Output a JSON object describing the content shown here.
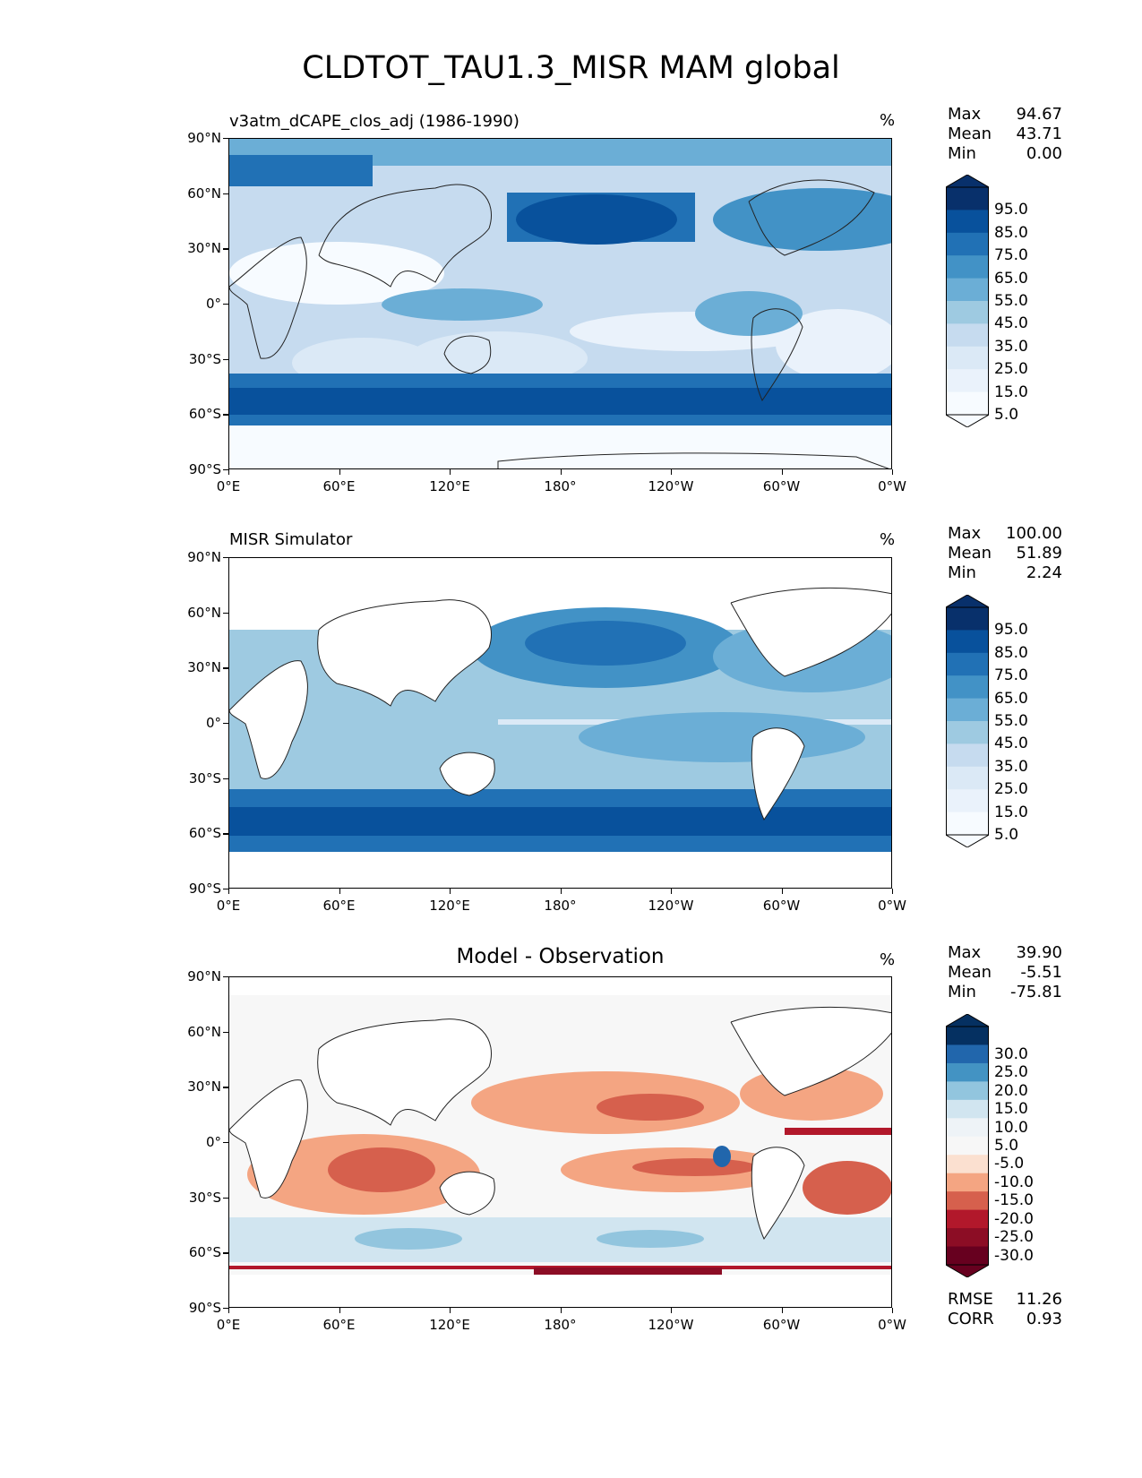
{
  "figure": {
    "title": "CLDTOT_TAU1.3_MISR MAM global"
  },
  "axes": {
    "lat_labels": [
      "90°N",
      "60°N",
      "30°N",
      "0°",
      "30°S",
      "60°S",
      "90°S"
    ],
    "lon_labels": [
      "0°E",
      "60°E",
      "120°E",
      "180°",
      "120°W",
      "60°W",
      "0°W"
    ]
  },
  "panels": [
    {
      "label": "v3atm_dCAPE_clos_adj (1986-1990)",
      "units": "%",
      "stats": {
        "max_label": "Max",
        "max": "94.67",
        "mean_label": "Mean",
        "mean": "43.71",
        "min_label": "Min",
        "min": "0.00"
      },
      "colorbar": {
        "labels": [
          "95.0",
          "85.0",
          "75.0",
          "65.0",
          "55.0",
          "45.0",
          "35.0",
          "25.0",
          "15.0",
          "5.0"
        ],
        "colors": [
          "#08306b",
          "#08519c",
          "#2171b5",
          "#4292c6",
          "#6baed6",
          "#9ecae1",
          "#c6dbef",
          "#dbe9f6",
          "#eaf2fb",
          "#f7fbff"
        ]
      }
    },
    {
      "label": "MISR Simulator",
      "units": "%",
      "stats": {
        "max_label": "Max",
        "max": "100.00",
        "mean_label": "Mean",
        "mean": "51.89",
        "min_label": "Min",
        "min": "2.24"
      },
      "colorbar": {
        "labels": [
          "95.0",
          "85.0",
          "75.0",
          "65.0",
          "55.0",
          "45.0",
          "35.0",
          "25.0",
          "15.0",
          "5.0"
        ],
        "colors": [
          "#08306b",
          "#08519c",
          "#2171b5",
          "#4292c6",
          "#6baed6",
          "#9ecae1",
          "#c6dbef",
          "#dbe9f6",
          "#eaf2fb",
          "#f7fbff"
        ]
      }
    },
    {
      "label": "Model - Observation",
      "units": "%",
      "stats": {
        "max_label": "Max",
        "max": "39.90",
        "mean_label": "Mean",
        "mean": "-5.51",
        "min_label": "Min",
        "min": "-75.81"
      },
      "colorbar": {
        "labels": [
          "30.0",
          "25.0",
          "20.0",
          "15.0",
          "10.0",
          "5.0",
          "-5.0",
          "-10.0",
          "-15.0",
          "-20.0",
          "-25.0",
          "-30.0"
        ],
        "colors": [
          "#053061",
          "#2166ac",
          "#4393c3",
          "#92c5de",
          "#d1e5f0",
          "#eef3f7",
          "#f7f7f7",
          "#fbe0d0",
          "#f4a582",
          "#d6604d",
          "#b2182b",
          "#8c0d25",
          "#67001f"
        ]
      },
      "metrics": {
        "rmse_label": "RMSE",
        "rmse": "11.26",
        "corr_label": "CORR",
        "corr": "0.93"
      }
    }
  ]
}
